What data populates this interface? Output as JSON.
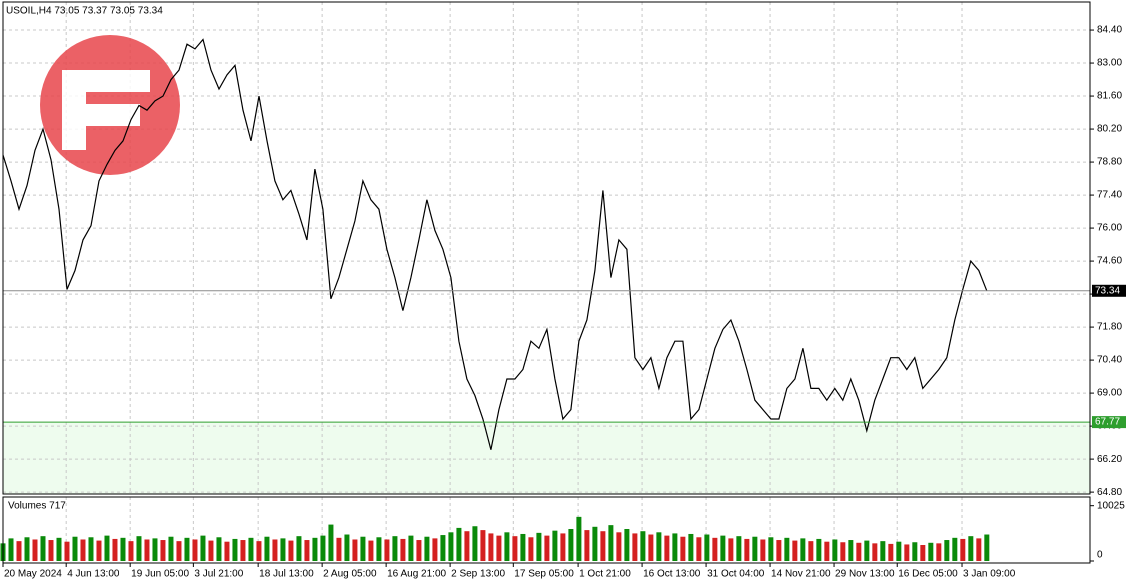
{
  "chart_data": [
    {
      "type": "line",
      "title": "USOIL,H4  73.05 73.37 73.05 73.34",
      "color": "#000000",
      "values": [
        79.1,
        78.0,
        76.8,
        77.8,
        79.3,
        80.2,
        78.9,
        76.8,
        73.4,
        74.2,
        75.5,
        76.1,
        78.0,
        78.7,
        79.3,
        79.7,
        80.6,
        81.2,
        81.0,
        81.4,
        81.6,
        82.3,
        82.7,
        83.8,
        83.6,
        84.0,
        82.7,
        81.9,
        82.5,
        82.9,
        81.0,
        79.7,
        81.6,
        79.7,
        78.0,
        77.2,
        77.6,
        76.6,
        75.5,
        78.5,
        76.8,
        73.0,
        73.9,
        75.1,
        76.3,
        78.0,
        77.2,
        76.8,
        75.1,
        73.9,
        72.5,
        73.9,
        75.5,
        77.2,
        75.9,
        75.1,
        73.9,
        71.2,
        69.6,
        68.9,
        67.9,
        66.6,
        68.3,
        69.6,
        69.6,
        70.0,
        71.2,
        70.9,
        71.7,
        69.6,
        67.9,
        68.3,
        71.2,
        72.1,
        74.2,
        77.6,
        73.9,
        75.5,
        75.1,
        70.5,
        70.0,
        70.5,
        69.2,
        70.5,
        71.2,
        71.2,
        67.9,
        68.3,
        69.6,
        70.9,
        71.7,
        72.1,
        71.2,
        70.0,
        68.7,
        68.3,
        67.9,
        67.9,
        69.2,
        69.6,
        70.9,
        69.2,
        69.2,
        68.7,
        69.2,
        68.7,
        69.6,
        68.7,
        67.4,
        68.7,
        69.6,
        70.5,
        70.5,
        70.0,
        70.5,
        69.2,
        69.6,
        70.0,
        70.5,
        72.1,
        73.4,
        74.6,
        74.2,
        73.34
      ],
      "xlim": [
        0,
        135.9
      ],
      "ylim": [
        64.72,
        85.59
      ],
      "yticks": [
        {
          "value": 64.8,
          "label": "64.80"
        },
        {
          "value": 66.2,
          "label": "66.20"
        },
        {
          "value": 67.6,
          "label": "67.60"
        },
        {
          "value": 69,
          "label": "69.00"
        },
        {
          "value": 70.4,
          "label": "70.40"
        },
        {
          "value": 71.8,
          "label": "71.80"
        },
        {
          "value": 73.2,
          "label": "73.20"
        },
        {
          "value": 74.6,
          "label": "74.60"
        },
        {
          "value": 76,
          "label": "76.00"
        },
        {
          "value": 77.4,
          "label": "77.40"
        },
        {
          "value": 78.8,
          "label": "78.80"
        },
        {
          "value": 80.2,
          "label": "80.20"
        },
        {
          "value": 81.6,
          "label": "81.60"
        },
        {
          "value": 83,
          "label": "83.00"
        },
        {
          "value": 84.4,
          "label": "84.40"
        }
      ],
      "xticks": [
        {
          "value": 0,
          "label": "20 May 2024"
        },
        {
          "value": 7.9,
          "label": "4 Jun 13:00"
        },
        {
          "value": 15.9,
          "label": "19 Jun 05:00"
        },
        {
          "value": 23.8,
          "label": "3 Jul 21:00"
        },
        {
          "value": 31.9,
          "label": "18 Jul 13:00"
        },
        {
          "value": 39.9,
          "label": "2 Aug 05:00"
        },
        {
          "value": 47.9,
          "label": "16 Aug 21:00"
        },
        {
          "value": 55.9,
          "label": "2 Sep 13:00"
        },
        {
          "value": 63.8,
          "label": "17 Sep 05:00"
        },
        {
          "value": 71.9,
          "label": "1 Oct 21:00"
        },
        {
          "value": 79.9,
          "label": "16 Oct 13:00"
        },
        {
          "value": 87.9,
          "label": "31 Oct 04:00"
        },
        {
          "value": 95.9,
          "label": "14 Nov 21:00"
        },
        {
          "value": 103.9,
          "label": "29 Nov 13:00"
        },
        {
          "value": 111.8,
          "label": "16 Dec 05:00"
        },
        {
          "value": 119.9,
          "label": "3 Jan 09:00"
        }
      ],
      "grid": true,
      "last_price": 73.34,
      "last_price_color": "#8c8c8c",
      "level": 67.77,
      "level_color": "#2e9e2e",
      "zone_color": "#eefcee"
    },
    {
      "type": "bar",
      "title": "Volumes 717",
      "up_color": "#0a8a0a",
      "down_color": "#d42020",
      "values": [
        3200,
        4100,
        3600,
        4300,
        3900,
        4500,
        3800,
        4200,
        3500,
        4400,
        3900,
        4300,
        3700,
        4600,
        4000,
        4200,
        3600,
        4500,
        3900,
        4100,
        3800,
        4400,
        3600,
        4200,
        3900,
        4600,
        3700,
        4300,
        3500,
        4000,
        3800,
        4200,
        3600,
        4400,
        3900,
        4100,
        3700,
        4500,
        3800,
        4200,
        4600,
        6600,
        4200,
        4800,
        3900,
        4400,
        3700,
        4300,
        3900,
        4500,
        4000,
        4600,
        3800,
        4400,
        4100,
        4700,
        5200,
        6000,
        5400,
        6300,
        5600,
        5000,
        4600,
        5200,
        4500,
        4900,
        4300,
        5100,
        4600,
        5500,
        5000,
        5800,
        8000,
        5600,
        6200,
        5400,
        6500,
        5200,
        5800,
        5000,
        5400,
        4800,
        5200,
        4600,
        5000,
        4400,
        4900,
        4300,
        4800,
        4200,
        4600,
        4100,
        4500,
        4000,
        4400,
        3900,
        4300,
        3800,
        4200,
        3700,
        4100,
        3600,
        4000,
        3500,
        3900,
        3400,
        3800,
        3300,
        3700,
        3200,
        3600,
        3100,
        3500,
        3000,
        3400,
        2900,
        3300,
        3200,
        3800,
        4200,
        4000,
        4500,
        4100,
        4800
      ],
      "xlim": [
        0,
        135.9
      ],
      "ylim": [
        0,
        11600
      ],
      "yticks": [
        0,
        10025
      ]
    }
  ]
}
